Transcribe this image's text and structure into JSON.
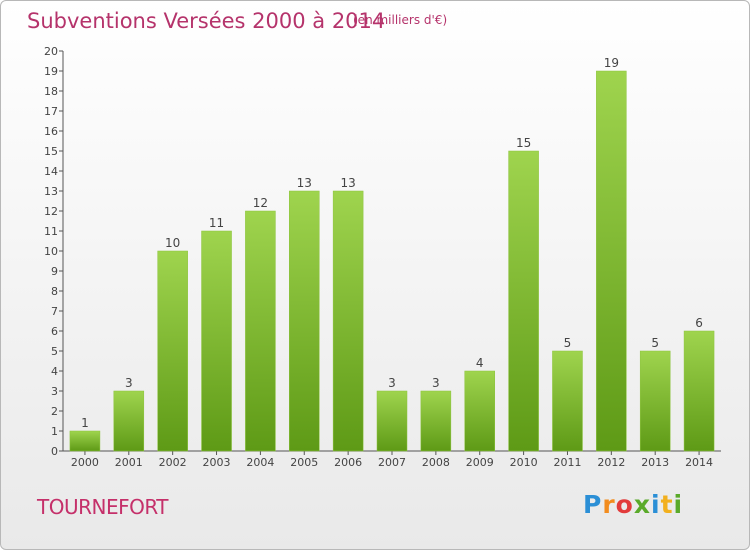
{
  "title": "Subventions Versées 2000 à 2014",
  "subtitle": "(en milliers d'€)",
  "town": "TOURNEFORT",
  "logo": {
    "letters": [
      "P",
      "r",
      "o",
      "x",
      "i",
      "t",
      "i"
    ],
    "colors": [
      "#2b8fd6",
      "#f28c1e",
      "#e23b3b",
      "#5aaa2a",
      "#2b8fd6",
      "#f2b01e",
      "#5aaa2a"
    ]
  },
  "colors": {
    "bar_top": "#9fd44e",
    "bar_bottom": "#5e9a16",
    "title": "#b5336b"
  },
  "chart_data": {
    "type": "bar",
    "title": "Subventions Versées 2000 à 2014",
    "subtitle": "(en milliers d'€)",
    "categories": [
      "2000",
      "2001",
      "2002",
      "2003",
      "2004",
      "2005",
      "2006",
      "2007",
      "2008",
      "2009",
      "2010",
      "2011",
      "2012",
      "2013",
      "2014"
    ],
    "values": [
      1,
      3,
      10,
      11,
      12,
      13,
      13,
      3,
      3,
      4,
      15,
      5,
      19,
      5,
      6
    ],
    "ylim": [
      0,
      20
    ],
    "yticks": [
      0,
      1,
      2,
      3,
      4,
      5,
      6,
      7,
      8,
      9,
      10,
      11,
      12,
      13,
      14,
      15,
      16,
      17,
      18,
      19,
      20
    ],
    "grid": false,
    "legend": "none"
  }
}
